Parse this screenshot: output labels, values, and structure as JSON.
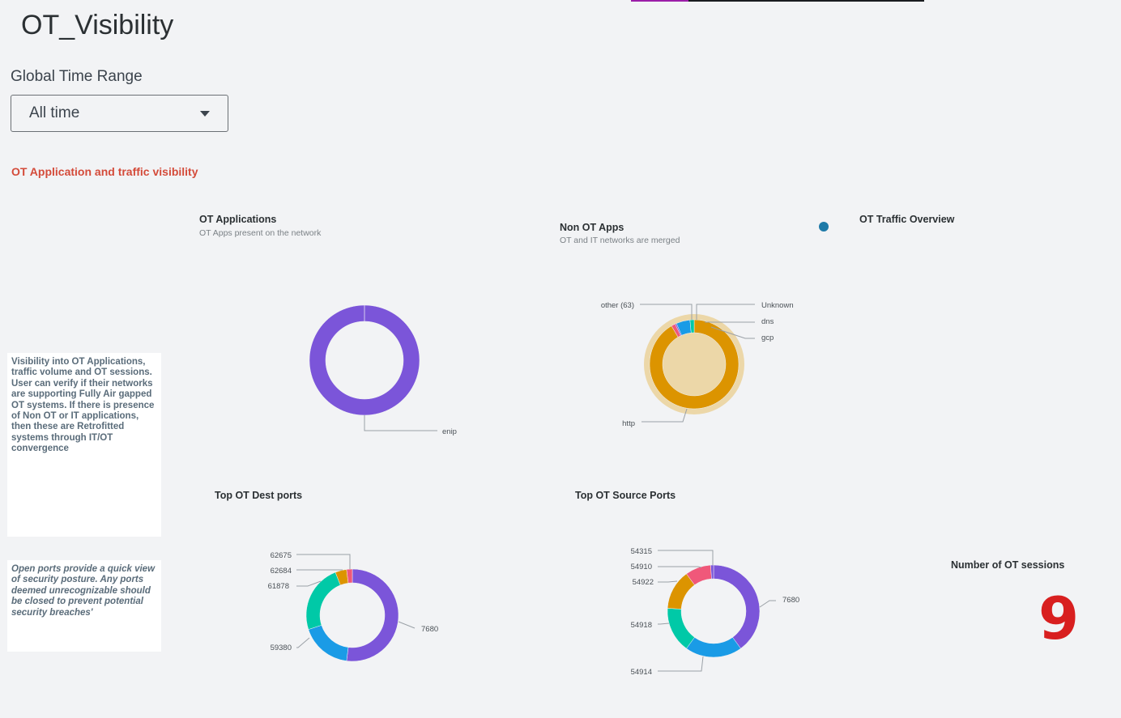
{
  "dashboard": {
    "title": "OT_Visibility",
    "time_range_label": "Global Time Range",
    "time_range_value": "All time",
    "section_title": "OT Application and traffic visibility"
  },
  "notes": {
    "visibility": "Visibility into OT Applications, traffic volume and OT sessions. User can verify if their networks are supporting Fully Air gapped OT systems. If there is presence of Non OT or IT applications, then these are Retrofitted systems through IT/OT convergence",
    "ports": "Open ports provide a quick view of security posture. Any ports deemed unrecognizable should be closed to prevent potential security breaches'"
  },
  "panels": {
    "ot_apps": {
      "title": "OT Applications",
      "subtitle": "OT Apps present on the network"
    },
    "non_ot_apps": {
      "title": "Non OT Apps",
      "subtitle": "OT and IT networks are merged"
    },
    "traffic_overview": {
      "title": "OT Traffic Overview"
    },
    "dest_ports": {
      "title": "Top OT Dest ports"
    },
    "source_ports": {
      "title": "Top OT Source Ports"
    },
    "sessions": {
      "title": "Number of OT sessions",
      "value": "9"
    }
  },
  "colors": {
    "purple": "#7b55d9",
    "blue": "#1a9be6",
    "teal": "#00c9a7",
    "orange": "#dc9400",
    "pink": "#f0587a",
    "accent_red": "#d44b3a",
    "sessions_red": "#d81f1f"
  },
  "chart_data": [
    {
      "type": "pie",
      "id": "ot_apps",
      "title": "OT Applications",
      "categories": [
        "enip"
      ],
      "values": [
        100
      ]
    },
    {
      "type": "pie",
      "id": "non_ot_apps",
      "title": "Non OT Apps",
      "categories": [
        "http",
        "other (63)",
        "Unknown",
        "dns",
        "gcp"
      ],
      "values": [
        91.5,
        1.5,
        0.5,
        5.0,
        1.5
      ]
    },
    {
      "type": "pie",
      "id": "dest_ports",
      "title": "Top OT Dest ports",
      "categories": [
        "7680",
        "59380",
        "61878",
        "62684",
        "62675"
      ],
      "values": [
        52,
        18,
        24,
        4,
        2
      ]
    },
    {
      "type": "pie",
      "id": "source_ports",
      "title": "Top OT Source Ports",
      "categories": [
        "7680",
        "54914",
        "54918",
        "54922",
        "54910",
        "54315"
      ],
      "values": [
        40,
        20,
        16,
        14,
        9,
        1
      ]
    }
  ]
}
